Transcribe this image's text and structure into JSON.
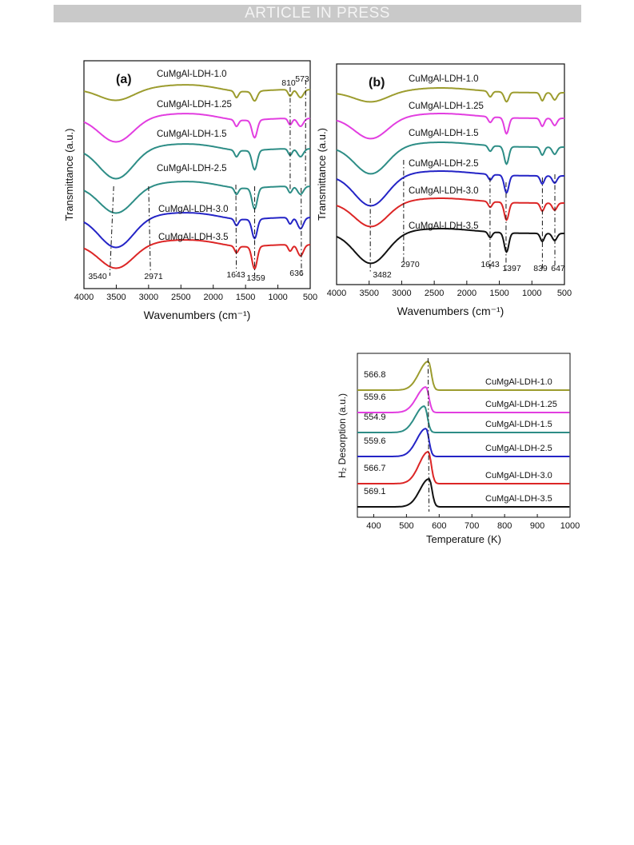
{
  "header": {
    "banner": "ARTICLE IN PRESS"
  },
  "colors": {
    "olive": "#9c9c2e",
    "magenta": "#e23ee0",
    "teal": "#2d8d86",
    "blue": "#2424c6",
    "red": "#dc2626",
    "black": "#111111"
  },
  "chart_data": [
    {
      "type": "line",
      "panel_label": "(a)",
      "xlabel": "Wavenumbers (cm⁻¹)",
      "ylabel": "Transmittance (a.u.)",
      "xlim": [
        4000,
        500
      ],
      "x_ticks": [
        "4000",
        "3500",
        "3000",
        "2500",
        "2000",
        "1500",
        "1000",
        "500"
      ],
      "series": [
        {
          "name": "CuMgAl-LDH-1.0",
          "color": "olive"
        },
        {
          "name": "CuMgAl-LDH-1.25",
          "color": "magenta"
        },
        {
          "name": "CuMgAl-LDH-1.5",
          "color": "teal"
        },
        {
          "name": "CuMgAl-LDH-2.5",
          "color": "teal"
        },
        {
          "name": "CuMgAl-LDH-3.0",
          "color": "blue"
        },
        {
          "name": "CuMgAl-LDH-3.5",
          "color": "red"
        }
      ],
      "annotations": [
        "3540",
        "2971",
        "1643",
        "1359",
        "636",
        "810",
        "573"
      ]
    },
    {
      "type": "line",
      "panel_label": "(b)",
      "xlabel": "Wavenumbers (cm⁻¹)",
      "ylabel": "Transmittance (a.u.)",
      "xlim": [
        4000,
        500
      ],
      "x_ticks": [
        "4000",
        "3500",
        "3000",
        "2500",
        "2000",
        "1500",
        "1000",
        "500"
      ],
      "series": [
        {
          "name": "CuMgAl-LDH-1.0",
          "color": "olive"
        },
        {
          "name": "CuMgAl-LDH-1.25",
          "color": "magenta"
        },
        {
          "name": "CuMgAl-LDH-1.5",
          "color": "teal"
        },
        {
          "name": "CuMgAl-LDH-2.5",
          "color": "blue"
        },
        {
          "name": "CuMgAl-LDH-3.0",
          "color": "red"
        },
        {
          "name": "CuMgAl-LDH-3.5",
          "color": "black"
        }
      ],
      "annotations": [
        "3482",
        "2970",
        "1643",
        "1397",
        "839",
        "647"
      ]
    },
    {
      "type": "line",
      "xlabel": "Temperature (K)",
      "ylabel": "H₂  Desorption (a.u.)",
      "xlim": [
        350,
        1000
      ],
      "x_ticks": [
        "400",
        "500",
        "600",
        "700",
        "800",
        "900",
        "1000"
      ],
      "series": [
        {
          "name": "CuMgAl-LDH-1.0",
          "color": "olive",
          "peak": 566.8
        },
        {
          "name": "CuMgAl-LDH-1.25",
          "color": "magenta",
          "peak": 559.6
        },
        {
          "name": "CuMgAl-LDH-1.5",
          "color": "teal",
          "peak": 554.9
        },
        {
          "name": "CuMgAl-LDH-2.5",
          "color": "blue",
          "peak": 559.6
        },
        {
          "name": "CuMgAl-LDH-3.0",
          "color": "red",
          "peak": 566.7
        },
        {
          "name": "CuMgAl-LDH-3.5",
          "color": "black",
          "peak": 569.1
        }
      ],
      "peak_labels": [
        "566.8",
        "559.6",
        "554.9",
        "559.6",
        "566.7",
        "569.1"
      ]
    }
  ]
}
